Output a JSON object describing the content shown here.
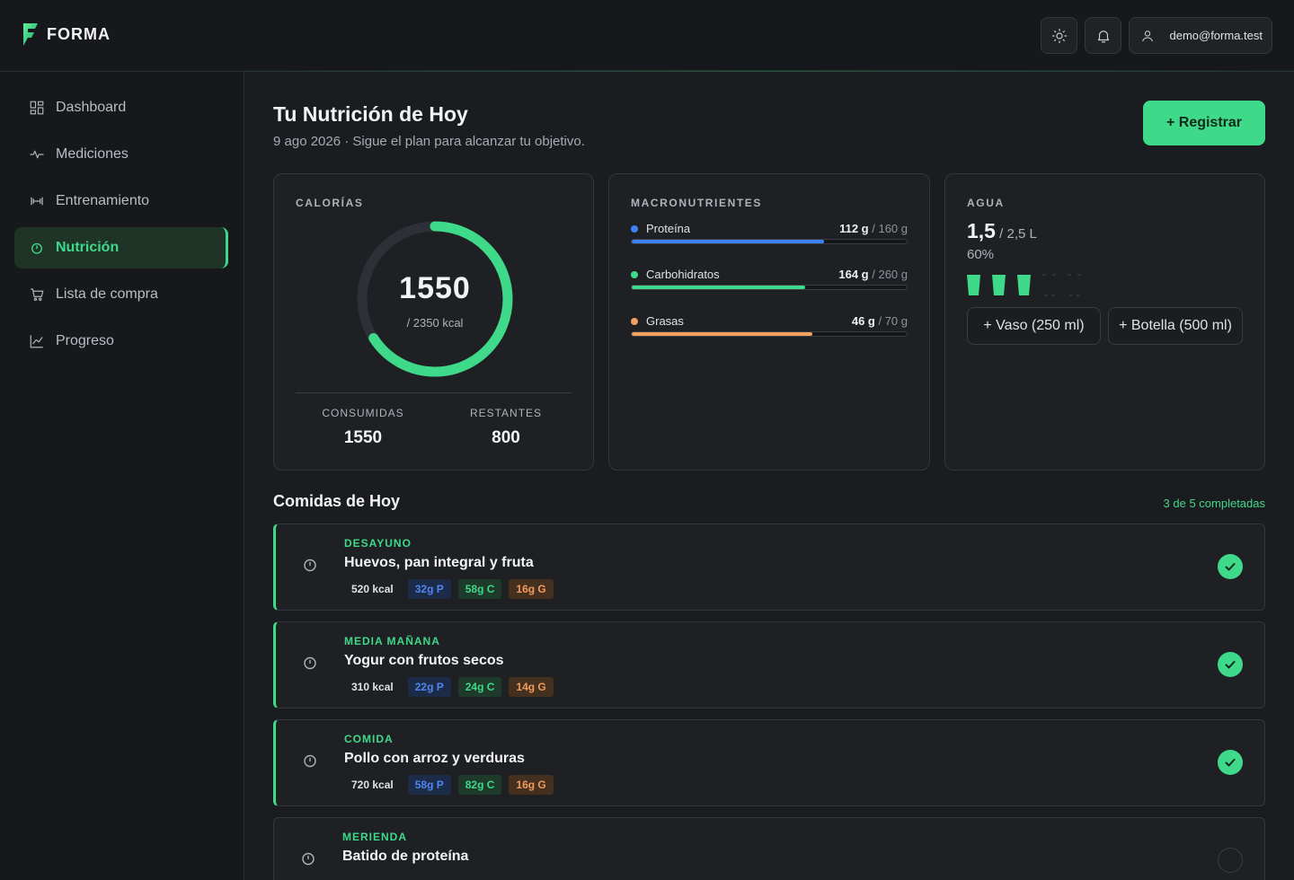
{
  "app": {
    "name": "FORMA"
  },
  "header": {
    "user_email": "demo@forma.test"
  },
  "sidebar": {
    "items": [
      {
        "label": "Dashboard",
        "icon": "dashboard-icon"
      },
      {
        "label": "Mediciones",
        "icon": "activity-icon"
      },
      {
        "label": "Entrenamiento",
        "icon": "dumbbell-icon"
      },
      {
        "label": "Nutrición",
        "icon": "apple-icon",
        "active": true
      },
      {
        "label": "Lista de compra",
        "icon": "cart-icon"
      },
      {
        "label": "Progreso",
        "icon": "chart-line-icon"
      }
    ]
  },
  "main": {
    "title": "Tu Nutrición de Hoy",
    "subtitle": "9 ago 2026 · Sigue el plan para alcanzar tu objetivo.",
    "register_label": "+ Registrar"
  },
  "calories": {
    "label": "CALORÍAS",
    "consumed": 1550,
    "goal": 2350,
    "consumed_text": "1550",
    "goal_text": "/ 2350 kcal",
    "consumed_label": "CONSUMIDAS",
    "consumed_value": "1550",
    "remaining_label": "RESTANTES",
    "remaining_value": "800"
  },
  "macros": {
    "label": "MACRONUTRIENTES",
    "items": [
      {
        "name": "Proteína",
        "current": "112 g",
        "target": " / 160 g",
        "fraction": 0.7,
        "color": "#3b82f6"
      },
      {
        "name": "Carbohidratos",
        "current": "164 g",
        "target": " / 260 g",
        "fraction": 0.63,
        "color": "#3fd98a"
      },
      {
        "name": "Grasas",
        "current": "46 g",
        "target": " / 70 g",
        "fraction": 0.657,
        "color": "#f4a05f"
      }
    ]
  },
  "water": {
    "label": "AGUA",
    "amount": "1,5",
    "target": " / 2,5 L",
    "percent": "60%",
    "glasses_filled": 3,
    "glasses_total": 5,
    "add_glass_label": "+ Vaso (250 ml)",
    "add_bottle_label": "+ Botella (500 ml)"
  },
  "meals": {
    "title": "Comidas de Hoy",
    "count_text": "3 de 5 completadas",
    "items": [
      {
        "type": "DESAYUNO",
        "name": "Huevos, pan integral y fruta",
        "kcal": "520 kcal",
        "protein": "32g P",
        "carbs": "58g C",
        "fat": "16g G",
        "done": true
      },
      {
        "type": "MEDIA MAÑANA",
        "name": "Yogur con frutos secos",
        "kcal": "310 kcal",
        "protein": "22g P",
        "carbs": "24g C",
        "fat": "14g G",
        "done": true
      },
      {
        "type": "COMIDA",
        "name": "Pollo con arroz y verduras",
        "kcal": "720 kcal",
        "protein": "58g P",
        "carbs": "82g C",
        "fat": "16g G",
        "done": true
      },
      {
        "type": "MERIENDA",
        "name": "Batido de proteína",
        "kcal": "",
        "protein": "",
        "carbs": "",
        "fat": "",
        "done": false
      }
    ]
  },
  "colors": {
    "accent": "#3fd98a",
    "protein": "#3b82f6",
    "fat": "#f4a05f"
  }
}
